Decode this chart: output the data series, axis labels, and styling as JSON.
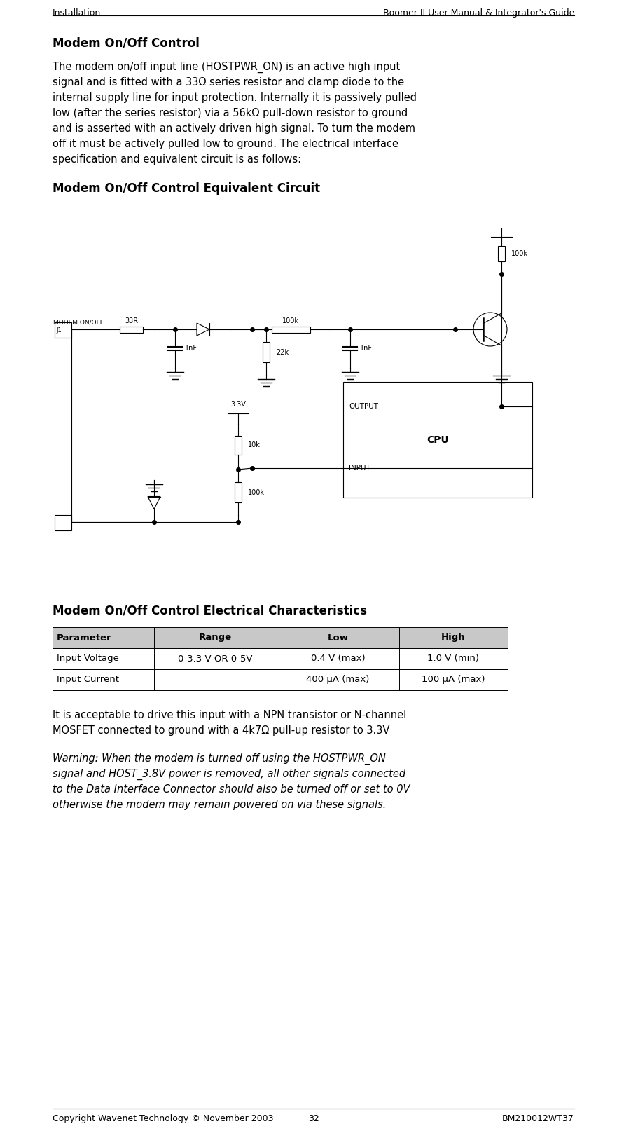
{
  "header_left": "Installation",
  "header_right": "Boomer II User Manual & Integrator's Guide",
  "footer_left": "Copyright Wavenet Technology © November 2003",
  "footer_center": "32",
  "footer_right": "BM210012WT37",
  "section_title": "Modem On/Off Control",
  "circuit_title": "Modem On/Off Control Equivalent Circuit",
  "table_title": "Modem On/Off Control Electrical Characteristics",
  "table_headers": [
    "Parameter",
    "Range",
    "Low",
    "High"
  ],
  "table_rows": [
    [
      "Input Voltage",
      "0-3.3 V OR 0-5V",
      "0.4 V (max)",
      "1.0 V (min)"
    ],
    [
      "Input Current",
      "",
      "400 µA (max)",
      "100 µA (max)"
    ]
  ],
  "body_lines": [
    "The modem on/off input line (HOSTPWR_ON) is an active high input",
    "signal and is fitted with a 33Ω series resistor and clamp diode to the",
    "internal supply line for input protection. Internally it is passively pulled",
    "low (after the series resistor) via a 56kΩ pull-down resistor to ground",
    "and is asserted with an actively driven high signal. To turn the modem",
    "off it must be actively pulled low to ground. The electrical interface",
    "specification and equivalent circuit is as follows:"
  ],
  "note_lines": [
    "It is acceptable to drive this input with a NPN transistor or N-channel",
    "MOSFET connected to ground with a 4k7Ω pull-up resistor to 3.3V"
  ],
  "warning_lines": [
    "Warning: When the modem is turned off using the HOSTPWR_ON",
    "signal and HOST_3.8V power is removed, all other signals connected",
    "to the Data Interface Connector should also be turned off or set to 0V",
    "otherwise the modem may remain powered on via these signals."
  ],
  "bg_color": "#ffffff",
  "text_color": "#000000",
  "font_size_body": 10.5,
  "font_size_header": 9,
  "font_size_section": 12,
  "font_size_table": 9.5,
  "ml": 75,
  "mr": 820
}
